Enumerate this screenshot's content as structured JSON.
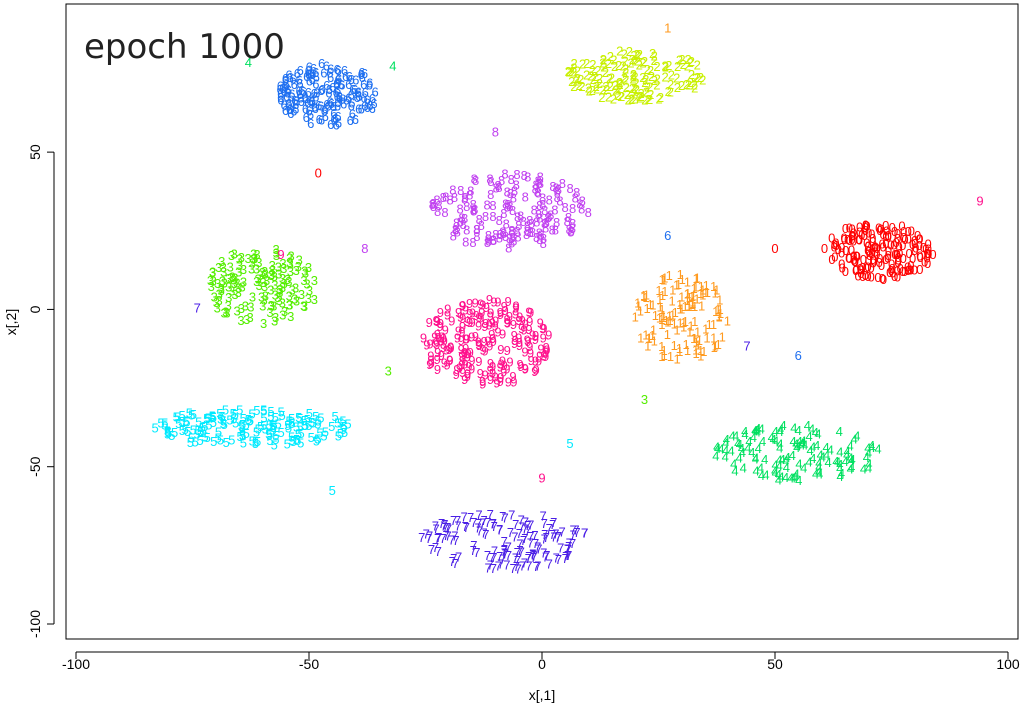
{
  "chart_data": {
    "type": "scatter",
    "annotation": "epoch 1000",
    "xlabel": "x[,1]",
    "ylabel": "x[,2]",
    "xlim": [
      -100,
      100
    ],
    "ylim": [
      -100,
      92
    ],
    "xticks": [
      -100,
      -50,
      0,
      50,
      100
    ],
    "yticks": [
      -100,
      -50,
      0,
      50
    ],
    "grid": false,
    "marker": "digit labels",
    "clusters": [
      {
        "label": "0",
        "color": "#ff0000",
        "center": [
          72,
          17
        ],
        "spread": [
          12,
          9
        ],
        "n": 170
      },
      {
        "label": "1",
        "color": "#ff9a1f",
        "center": [
          30,
          -4
        ],
        "spread": [
          10,
          14
        ],
        "n": 130
      },
      {
        "label": "2",
        "color": "#c8f000",
        "center": [
          20,
          73
        ],
        "spread": [
          15,
          8
        ],
        "n": 150
      },
      {
        "label": "3",
        "color": "#55ee00",
        "center": [
          -60,
          6
        ],
        "spread": [
          12,
          12
        ],
        "n": 140
      },
      {
        "label": "4",
        "color": "#00e060",
        "center": [
          55,
          -47
        ],
        "spread": [
          18,
          9
        ],
        "n": 130
      },
      {
        "label": "5",
        "color": "#00eaff",
        "center": [
          -62,
          -39
        ],
        "spread": [
          22,
          6
        ],
        "n": 160
      },
      {
        "label": "6",
        "color": "#1e6ff0",
        "center": [
          -46,
          67
        ],
        "spread": [
          11,
          10
        ],
        "n": 160
      },
      {
        "label": "7",
        "color": "#4a1ee6",
        "center": [
          -8,
          -75
        ],
        "spread": [
          18,
          9
        ],
        "n": 150
      },
      {
        "label": "8",
        "color": "#c040f0",
        "center": [
          -7,
          30
        ],
        "spread": [
          17,
          12
        ],
        "n": 160
      },
      {
        "label": "9",
        "color": "#ff108c",
        "center": [
          -12,
          -12
        ],
        "spread": [
          14,
          14
        ],
        "n": 200
      }
    ],
    "outliers": [
      {
        "label": "4",
        "x": -63,
        "y": 77
      },
      {
        "label": "0",
        "x": -48,
        "y": 42
      },
      {
        "label": "8",
        "x": -10,
        "y": 55
      },
      {
        "label": "7",
        "x": -74,
        "y": -1
      },
      {
        "label": "9",
        "x": -56,
        "y": 16
      },
      {
        "label": "6",
        "x": 27,
        "y": 22
      },
      {
        "label": "0",
        "x": 50,
        "y": 18
      },
      {
        "label": "9",
        "x": 94,
        "y": 33
      },
      {
        "label": "7",
        "x": 44,
        "y": -13
      },
      {
        "label": "6",
        "x": 55,
        "y": -16
      },
      {
        "label": "4",
        "x": -32,
        "y": 76
      },
      {
        "label": "1",
        "x": 27,
        "y": 88
      },
      {
        "label": "3",
        "x": 22,
        "y": -30
      },
      {
        "label": "5",
        "x": 6,
        "y": -44
      },
      {
        "label": "9",
        "x": 0,
        "y": -55
      },
      {
        "label": "3",
        "x": -33,
        "y": -21
      },
      {
        "label": "5",
        "x": -45,
        "y": -59
      },
      {
        "label": "8",
        "x": -38,
        "y": 18
      }
    ]
  }
}
